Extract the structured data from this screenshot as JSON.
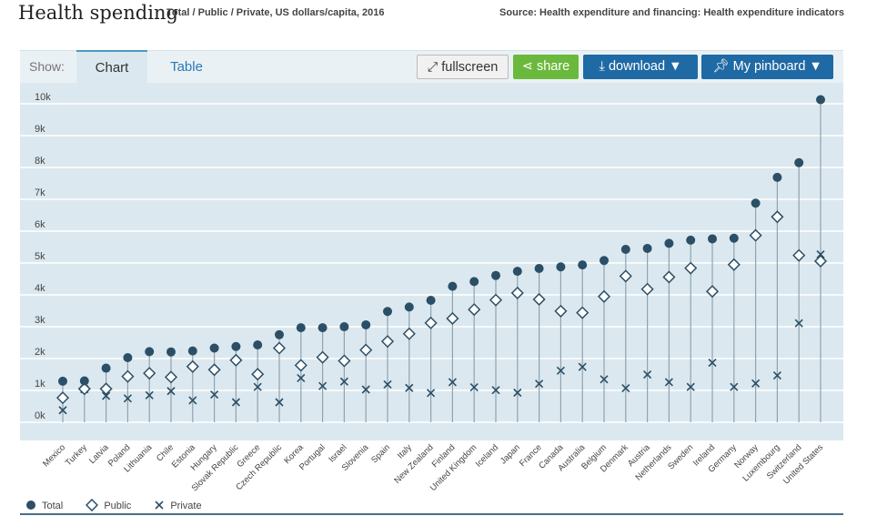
{
  "header": {
    "title": "Health spending",
    "subtitle": "Total / Public / Private, US dollars/capita, 2016",
    "source": "Source: Health expenditure and financing: Health expenditure indicators"
  },
  "toolbar": {
    "show_label": "Show:",
    "tab_chart": "Chart",
    "tab_table": "Table",
    "fullscreen_label": "fullscreen",
    "share_label": "share",
    "download_label": "download ▼",
    "pinboard_label": "My pinboard ▼"
  },
  "legend": {
    "total": "Total",
    "public": "Public",
    "private": "Private"
  },
  "colors": {
    "total": "#2b4f66",
    "public": "#2b4f66",
    "private": "#2b4f66",
    "stem": "#8fa3b0",
    "background": "#dce8ef"
  },
  "chart_data": {
    "type": "scatter",
    "title": "Health spending",
    "ylabel": "",
    "xlabel": "",
    "ylim": [
      0,
      10000
    ],
    "yticks": [
      "0k",
      "1k",
      "2k",
      "3k",
      "4k",
      "5k",
      "6k",
      "7k",
      "8k",
      "9k",
      "10k"
    ],
    "grid": true,
    "legend_position": "bottom-left",
    "categories": [
      "Mexico",
      "Turkey",
      "Latvia",
      "Poland",
      "Lithuania",
      "Chile",
      "Estonia",
      "Hungary",
      "Slovak Republic",
      "Greece",
      "Czech Republic",
      "Korea",
      "Portugal",
      "Israel",
      "Slovenia",
      "Spain",
      "Italy",
      "New Zealand",
      "Finland",
      "United Kingdom",
      "Iceland",
      "Japan",
      "France",
      "Canada",
      "Australia",
      "Belgium",
      "Denmark",
      "Austria",
      "Netherlands",
      "Sweden",
      "Ireland",
      "Germany",
      "Norway",
      "Luxembourg",
      "Switzerland",
      "United States"
    ],
    "series": [
      {
        "name": "Total",
        "marker": "circle",
        "values": [
          1060,
          1070,
          1470,
          1800,
          1990,
          1980,
          2010,
          2100,
          2150,
          2200,
          2520,
          2740,
          2740,
          2770,
          2830,
          3250,
          3390,
          3600,
          4040,
          4190,
          4380,
          4510,
          4600,
          4650,
          4710,
          4850,
          5200,
          5230,
          5390,
          5490,
          5530,
          5550,
          6650,
          7460,
          7920,
          9900
        ]
      },
      {
        "name": "Public",
        "marker": "diamond",
        "values": [
          540,
          820,
          820,
          1210,
          1310,
          1190,
          1520,
          1420,
          1720,
          1280,
          2100,
          1560,
          1810,
          1700,
          2040,
          2310,
          2550,
          2890,
          3030,
          3310,
          3610,
          3830,
          3630,
          3260,
          3210,
          3720,
          4360,
          3950,
          4330,
          4610,
          3880,
          4720,
          5640,
          6220,
          5010,
          4830
        ]
      },
      {
        "name": "Private",
        "marker": "x",
        "values": [
          150,
          810,
          600,
          520,
          620,
          750,
          460,
          640,
          400,
          880,
          400,
          1160,
          910,
          1050,
          800,
          960,
          850,
          690,
          1030,
          870,
          780,
          700,
          980,
          1390,
          1510,
          1120,
          840,
          1270,
          1030,
          880,
          1640,
          880,
          990,
          1240,
          2880,
          5040
        ]
      }
    ]
  }
}
